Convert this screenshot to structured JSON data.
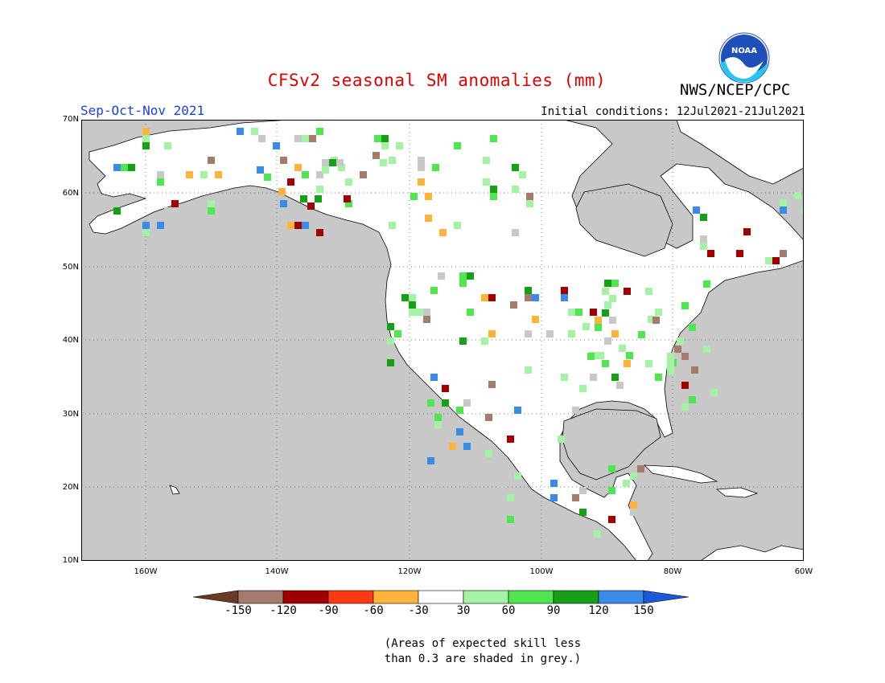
{
  "header": {
    "title": "CFSv2 seasonal SM anomalies (mm)",
    "season": "Sep-Oct-Nov 2021",
    "initial_conditions": "Initial conditions: 12Jul2021-21Jul2021",
    "agency": "NWS/NCEP/CPC",
    "logo_text": "NOAA"
  },
  "map": {
    "lat_labels": [
      "70N",
      "60N",
      "50N",
      "40N",
      "30N",
      "20N",
      "10N"
    ],
    "lon_labels": [
      "160W",
      "140W",
      "120W",
      "100W",
      "80W",
      "60W"
    ],
    "colors": {
      "ocean": "#c8c8c8",
      "land": "#ffffff",
      "low_skill": "#c8c8c8"
    }
  },
  "legend": {
    "colors": [
      "#6b3a26",
      "#a57b6e",
      "#a00000",
      "#ff3a10",
      "#ffb33a",
      "#ffffff",
      "#a4f2a4",
      "#4fe64f",
      "#16a016",
      "#3a8ae8",
      "#1a5ad8"
    ],
    "ticks": [
      "-150",
      "-120",
      "-90",
      "-60",
      "-30",
      "30",
      "60",
      "90",
      "120",
      "150"
    ]
  },
  "footnote": "(Areas of expected skill less\nthan 0.3 are shaded in grey.)"
}
